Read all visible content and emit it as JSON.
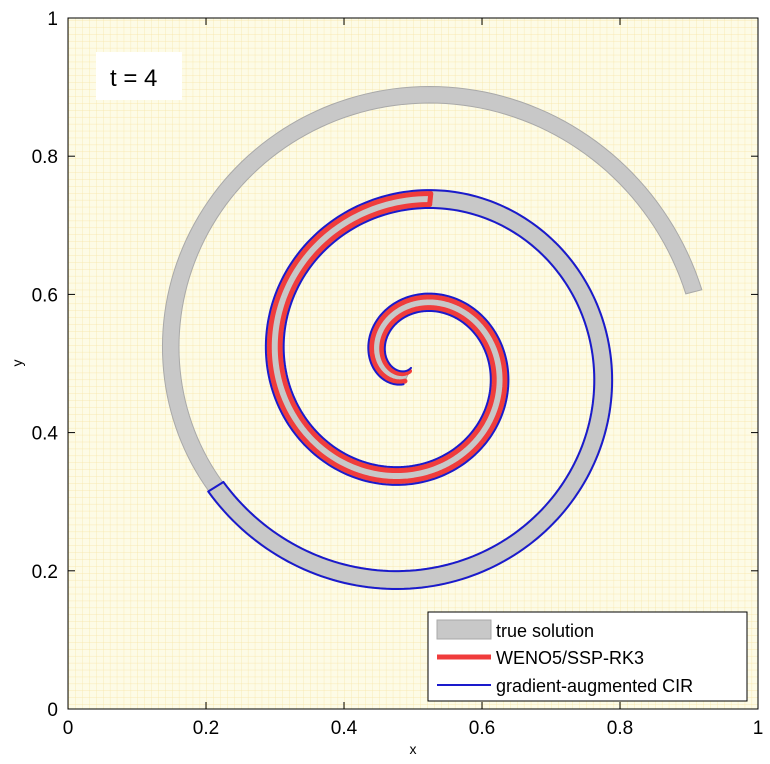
{
  "chart_data": {
    "type": "line",
    "title": "",
    "xlabel": "x",
    "ylabel": "y",
    "xlim": [
      0,
      1
    ],
    "ylim": [
      0,
      1
    ],
    "xticks": [
      "0",
      "0.2",
      "0.4",
      "0.6",
      "0.8",
      "1"
    ],
    "yticks": [
      "0",
      "0.2",
      "0.4",
      "0.6",
      "0.8",
      "1"
    ],
    "grid": true,
    "background_color": "#fdfbe6",
    "grid_color": "#f7e4a4",
    "annotation": "t = 4",
    "legend_position": "bottom-right",
    "series": [
      {
        "name": "true solution",
        "style": "filled-band",
        "color": "#c8c8c8",
        "edge_color": "#a9a9a9",
        "spiral": {
          "center": [
            0.5,
            0.5
          ],
          "r0": 0.02,
          "r1": 0.42,
          "theta_start": 2.0,
          "theta_end": 18.6,
          "width": 0.024
        }
      },
      {
        "name": "WENO5/SSP-RK3",
        "style": "thick-line",
        "color": "#f03c3c",
        "spiral": {
          "center": [
            0.5,
            0.5
          ],
          "r0": 0.02,
          "r1": 0.42,
          "theta_start": 2.0,
          "theta_end": 11.1,
          "width": 0.016
        }
      },
      {
        "name": "gradient-augmented CIR",
        "style": "thin-line",
        "color": "#1a1acc",
        "spiral": {
          "center": [
            0.5,
            0.5
          ],
          "r0": 0.02,
          "r1": 0.42,
          "theta_start": 2.0,
          "theta_end": 15.15,
          "width": 0.026
        }
      }
    ]
  }
}
